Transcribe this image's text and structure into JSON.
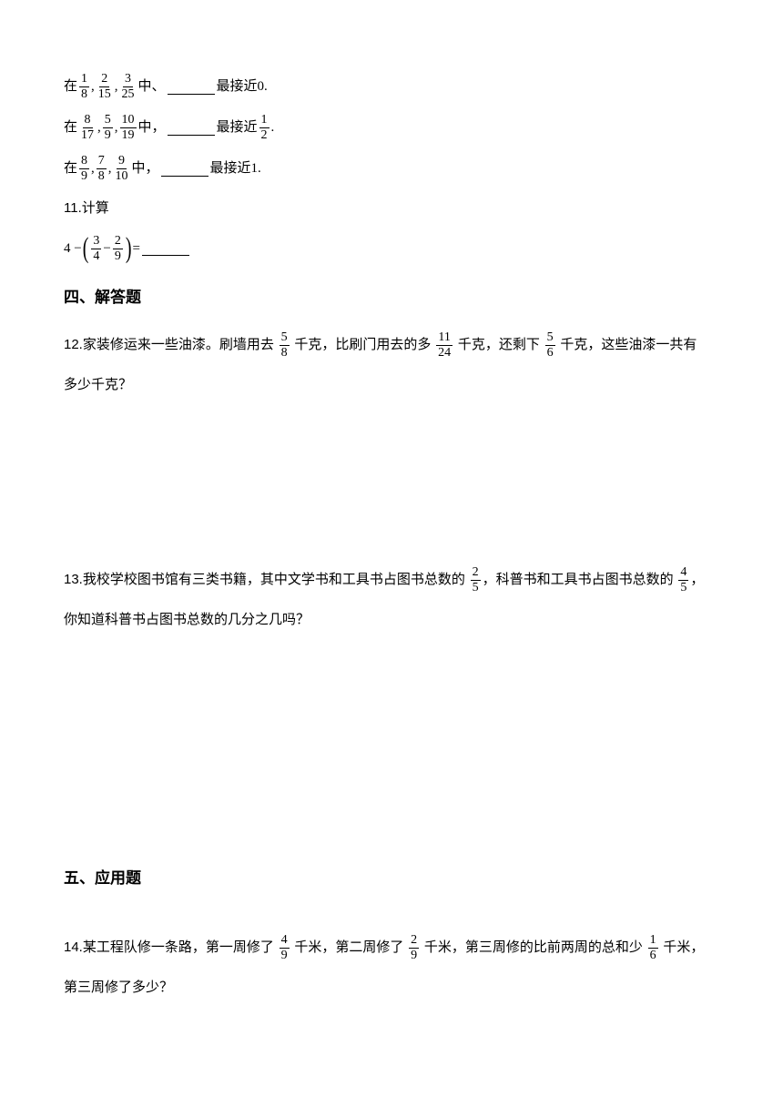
{
  "q_fill": {
    "line1": {
      "pre": "在 ",
      "f1": {
        "n": "1",
        "d": "8"
      },
      "sep": ", ",
      "f2": {
        "n": "2",
        "d": "15"
      },
      "f3": {
        "n": "3",
        "d": "25"
      },
      "mid": " 中、",
      "post1": "最接近 ",
      "target": "0",
      "end": "."
    },
    "line2": {
      "pre": "在 ",
      "f1": {
        "n": "8",
        "d": "17"
      },
      "sep": ", ",
      "f2": {
        "n": "5",
        "d": "9"
      },
      "f3": {
        "n": "10",
        "d": "19"
      },
      "mid": " 中，",
      "post1": "最接近 ",
      "target": {
        "n": "1",
        "d": "2"
      },
      "end": "."
    },
    "line3": {
      "pre": "在 ",
      "f1": {
        "n": "8",
        "d": "9"
      },
      "sep": ", ",
      "f2": {
        "n": "7",
        "d": "8"
      },
      "f3": {
        "n": "9",
        "d": "10"
      },
      "mid": " 中，",
      "post1": "最接近 ",
      "target": "1",
      "end": "."
    }
  },
  "q11": {
    "num": "11.",
    "label": "计算",
    "expr": {
      "lead": "4 − ",
      "f1": {
        "n": "3",
        "d": "4"
      },
      "minus": " − ",
      "f2": {
        "n": "2",
        "d": "9"
      },
      "eq": "= "
    }
  },
  "sec4": "四、解答题",
  "q12": {
    "num": "12.",
    "t1": "家装修运来一些油漆。刷墙用去 ",
    "f1": {
      "n": "5",
      "d": "8"
    },
    "t2": " 千克，比刷门用去的多 ",
    "f2": {
      "n": "11",
      "d": "24"
    },
    "t3": " 千克，还剩下 ",
    "f3": {
      "n": "5",
      "d": "6"
    },
    "t4": " 千克，这些油漆一共有",
    "t5": "多少千克？"
  },
  "q13": {
    "num": "13.",
    "t1": "我校学校图书馆有三类书籍，其中文学书和工具书占图书总数的 ",
    "f1": {
      "n": "2",
      "d": "5"
    },
    "t2": "，科普书和工具书占图书总数的 ",
    "f2": {
      "n": "4",
      "d": "5"
    },
    "t3": "，",
    "t4": "你知道科普书占图书总数的几分之几吗？"
  },
  "sec5": "五、应用题",
  "q14": {
    "num": "14.",
    "t1": "某工程队修一条路，第一周修了 ",
    "f1": {
      "n": "4",
      "d": "9"
    },
    "t2": " 千米，第二周修了 ",
    "f2": {
      "n": "2",
      "d": "9"
    },
    "t3": " 千米，第三周修的比前两周的总和少 ",
    "f3": {
      "n": "1",
      "d": "6"
    },
    "t4": " 千米，",
    "t5": "第三周修了多少？"
  }
}
